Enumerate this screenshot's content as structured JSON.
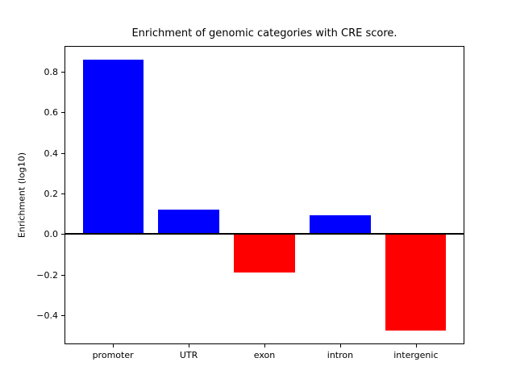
{
  "figure": {
    "title": "Enrichment of genomic categories with CRE score.",
    "ylabel": "Enrichment (log10)"
  },
  "chart_data": {
    "type": "bar",
    "title": "Enrichment of genomic categories with CRE score.",
    "xlabel": "",
    "ylabel": "Enrichment (log10)",
    "categories": [
      "promoter",
      "UTR",
      "exon",
      "intron",
      "intergenic"
    ],
    "values": [
      0.86,
      0.12,
      -0.19,
      0.095,
      -0.475
    ],
    "bar_colors": [
      "#0000ff",
      "#0000ff",
      "#ff0000",
      "#0000ff",
      "#ff0000"
    ],
    "positive_color": "#0000ff",
    "negative_color": "#ff0000",
    "yticks": [
      -0.4,
      -0.2,
      0.0,
      0.2,
      0.4,
      0.6,
      0.8
    ],
    "ytick_labels": [
      "−0.4",
      "−0.2",
      "0.0",
      "0.2",
      "0.4",
      "0.6",
      "0.8"
    ],
    "ylim": [
      -0.542,
      0.927
    ],
    "bar_width_fraction": 0.8,
    "zero_line": true,
    "zero_line_color": "#000000",
    "grid": false,
    "legend": null,
    "background_color": "#ffffff",
    "spine_color": "#000000"
  }
}
